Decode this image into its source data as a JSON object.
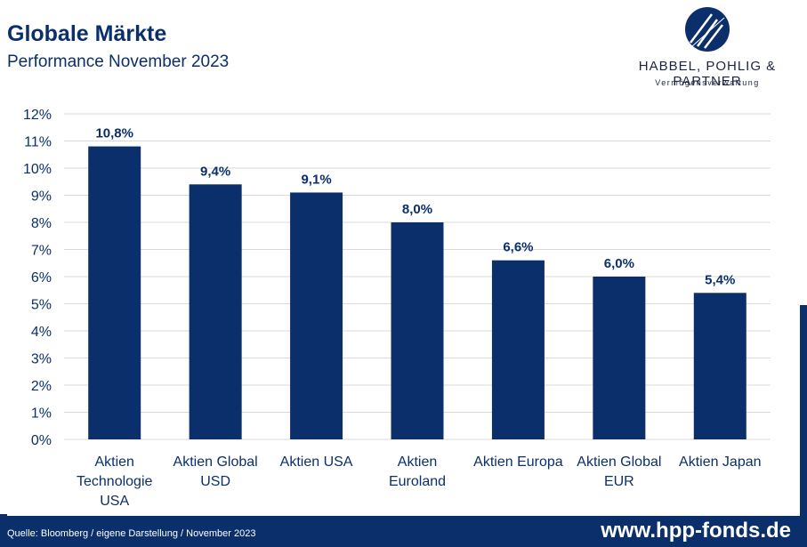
{
  "header": {
    "title": "Globale Märkte",
    "subtitle": "Performance November 2023"
  },
  "logo": {
    "name": "HABBEL, POHLIG & PARTNER",
    "tagline": "Vermögensverwaltung"
  },
  "footer": {
    "source": "Quelle: Bloomberg / eigene Darstellung / November 2023",
    "url": "www.hpp-fonds.de"
  },
  "colors": {
    "bar": "#0b2f6b",
    "text": "#0b2f6b",
    "grid": "#d9d9d9"
  },
  "chart_data": {
    "type": "bar",
    "title": "",
    "xlabel": "",
    "ylabel": "",
    "ylim": [
      0,
      12
    ],
    "yticks": [
      "0%",
      "1%",
      "2%",
      "3%",
      "4%",
      "5%",
      "6%",
      "7%",
      "8%",
      "9%",
      "10%",
      "11%",
      "12%"
    ],
    "grid": true,
    "categories": [
      [
        "Aktien",
        "Technologie",
        "USA"
      ],
      [
        "Aktien Global",
        "USD"
      ],
      [
        "Aktien USA"
      ],
      [
        "Aktien",
        "Euroland"
      ],
      [
        "Aktien Europa"
      ],
      [
        "Aktien Global",
        "EUR"
      ],
      [
        "Aktien Japan"
      ]
    ],
    "values": [
      10.8,
      9.4,
      9.1,
      8.0,
      6.6,
      6.0,
      5.4
    ],
    "data_labels": [
      "10,8%",
      "9,4%",
      "9,1%",
      "8,0%",
      "6,6%",
      "6,0%",
      "5,4%"
    ]
  }
}
